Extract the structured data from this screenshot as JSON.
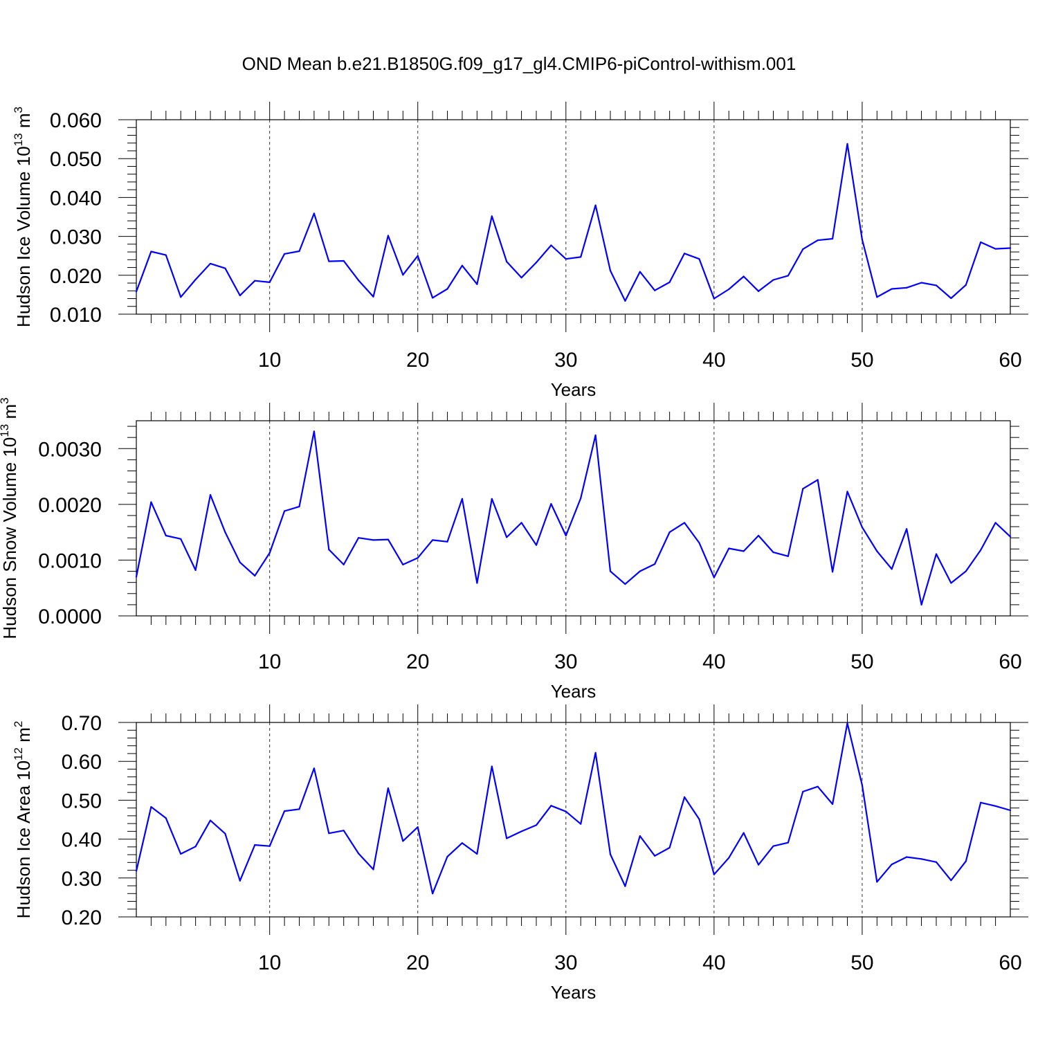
{
  "title": "OND Mean b.e21.B1850G.f09_g17_gl4.CMIP6-piControl-withism.001",
  "chart_data": [
    {
      "type": "line",
      "ylabel": "Hudson Ice Volume 10",
      "ylabel_exp": "13",
      "ylabel_unit": " m",
      "ylabel_unit_exp": "3",
      "xlabel": "Years",
      "xlim": [
        1,
        60
      ],
      "ylim": [
        0.01,
        0.06
      ],
      "yticks": [
        0.01,
        0.02,
        0.03,
        0.04,
        0.05,
        0.06
      ],
      "yticklabels": [
        "0.010",
        "0.020",
        "0.030",
        "0.040",
        "0.050",
        "0.060"
      ],
      "xticks": [
        10,
        20,
        30,
        40,
        50,
        60
      ],
      "xticklabels": [
        "10",
        "20",
        "30",
        "40",
        "50",
        "60"
      ],
      "color": "#0000ff",
      "x": [
        1,
        2,
        3,
        4,
        5,
        6,
        7,
        8,
        9,
        10,
        11,
        12,
        13,
        14,
        15,
        16,
        17,
        18,
        19,
        20,
        21,
        22,
        23,
        24,
        25,
        26,
        27,
        28,
        29,
        30,
        31,
        32,
        33,
        34,
        35,
        36,
        37,
        38,
        39,
        40,
        41,
        42,
        43,
        44,
        45,
        46,
        47,
        48,
        49,
        50,
        51,
        52,
        53,
        54,
        55,
        56,
        57,
        58,
        59,
        60
      ],
      "values": [
        0.0158,
        0.0261,
        0.0252,
        0.0144,
        0.0189,
        0.023,
        0.0218,
        0.0148,
        0.0186,
        0.0182,
        0.0255,
        0.0262,
        0.0359,
        0.0236,
        0.0237,
        0.0187,
        0.0145,
        0.0302,
        0.0201,
        0.025,
        0.0142,
        0.0165,
        0.0225,
        0.0177,
        0.0352,
        0.0235,
        0.0194,
        0.0233,
        0.0277,
        0.0242,
        0.0247,
        0.038,
        0.0212,
        0.0134,
        0.0209,
        0.0161,
        0.0182,
        0.0256,
        0.0242,
        0.014,
        0.0164,
        0.0197,
        0.0159,
        0.0188,
        0.0199,
        0.0267,
        0.029,
        0.0294,
        0.0538,
        0.0292,
        0.0144,
        0.0165,
        0.0168,
        0.0181,
        0.0174,
        0.0141,
        0.0175,
        0.0285,
        0.0268,
        0.027
      ]
    },
    {
      "type": "line",
      "ylabel": "Hudson Snow Volume 10",
      "ylabel_exp": "13",
      "ylabel_unit": " m",
      "ylabel_unit_exp": "3",
      "xlabel": "Years",
      "xlim": [
        1,
        60
      ],
      "ylim": [
        0.0,
        0.0035
      ],
      "yticks": [
        0.0,
        0.001,
        0.002,
        0.003
      ],
      "yticklabels": [
        "0.0000",
        "0.0010",
        "0.0020",
        "0.0030"
      ],
      "xticks": [
        10,
        20,
        30,
        40,
        50,
        60
      ],
      "xticklabels": [
        "10",
        "20",
        "30",
        "40",
        "50",
        "60"
      ],
      "color": "#0000ff",
      "x": [
        1,
        2,
        3,
        4,
        5,
        6,
        7,
        8,
        9,
        10,
        11,
        12,
        13,
        14,
        15,
        16,
        17,
        18,
        19,
        20,
        21,
        22,
        23,
        24,
        25,
        26,
        27,
        28,
        29,
        30,
        31,
        32,
        33,
        34,
        35,
        36,
        37,
        38,
        39,
        40,
        41,
        42,
        43,
        44,
        45,
        46,
        47,
        48,
        49,
        50,
        51,
        52,
        53,
        54,
        55,
        56,
        57,
        58,
        59,
        60
      ],
      "values": [
        0.0007,
        0.00204,
        0.00144,
        0.00138,
        0.00082,
        0.00217,
        0.0015,
        0.00096,
        0.00072,
        0.00113,
        0.00188,
        0.00196,
        0.00331,
        0.00119,
        0.00092,
        0.0014,
        0.00136,
        0.00137,
        0.00092,
        0.00104,
        0.00136,
        0.00133,
        0.0021,
        0.00059,
        0.0021,
        0.00141,
        0.00167,
        0.00127,
        0.00201,
        0.00144,
        0.00211,
        0.00324,
        0.0008,
        0.00057,
        0.0008,
        0.00093,
        0.0015,
        0.00167,
        0.00131,
        0.00069,
        0.00121,
        0.00116,
        0.00144,
        0.00114,
        0.00107,
        0.00228,
        0.00244,
        0.00079,
        0.00223,
        0.00159,
        0.00116,
        0.00084,
        0.00156,
        0.0002,
        0.00111,
        0.00059,
        0.0008,
        0.00118,
        0.00167,
        0.00142
      ]
    },
    {
      "type": "line",
      "ylabel": "Hudson Ice Area 10",
      "ylabel_exp": "12",
      "ylabel_unit": " m",
      "ylabel_unit_exp": "2",
      "xlabel": "Years",
      "xlim": [
        1,
        60
      ],
      "ylim": [
        0.2,
        0.7
      ],
      "yticks": [
        0.2,
        0.3,
        0.4,
        0.5,
        0.6,
        0.7
      ],
      "yticklabels": [
        "0.20",
        "0.30",
        "0.40",
        "0.50",
        "0.60",
        "0.70"
      ],
      "xticks": [
        10,
        20,
        30,
        40,
        50,
        60
      ],
      "xticklabels": [
        "10",
        "20",
        "30",
        "40",
        "50",
        "60"
      ],
      "color": "#0000ff",
      "x": [
        1,
        2,
        3,
        4,
        5,
        6,
        7,
        8,
        9,
        10,
        11,
        12,
        13,
        14,
        15,
        16,
        17,
        18,
        19,
        20,
        21,
        22,
        23,
        24,
        25,
        26,
        27,
        28,
        29,
        30,
        31,
        32,
        33,
        34,
        35,
        36,
        37,
        38,
        39,
        40,
        41,
        42,
        43,
        44,
        45,
        46,
        47,
        48,
        49,
        50,
        51,
        52,
        53,
        54,
        55,
        56,
        57,
        58,
        59,
        60
      ],
      "values": [
        0.318,
        0.483,
        0.454,
        0.362,
        0.381,
        0.448,
        0.414,
        0.293,
        0.385,
        0.382,
        0.472,
        0.477,
        0.582,
        0.415,
        0.422,
        0.363,
        0.322,
        0.531,
        0.395,
        0.431,
        0.26,
        0.355,
        0.39,
        0.362,
        0.587,
        0.402,
        0.42,
        0.436,
        0.486,
        0.471,
        0.439,
        0.622,
        0.361,
        0.279,
        0.408,
        0.357,
        0.378,
        0.508,
        0.451,
        0.309,
        0.352,
        0.416,
        0.334,
        0.382,
        0.391,
        0.522,
        0.535,
        0.49,
        0.698,
        0.539,
        0.29,
        0.335,
        0.354,
        0.349,
        0.341,
        0.294,
        0.343,
        0.494,
        0.485,
        0.474
      ]
    }
  ]
}
